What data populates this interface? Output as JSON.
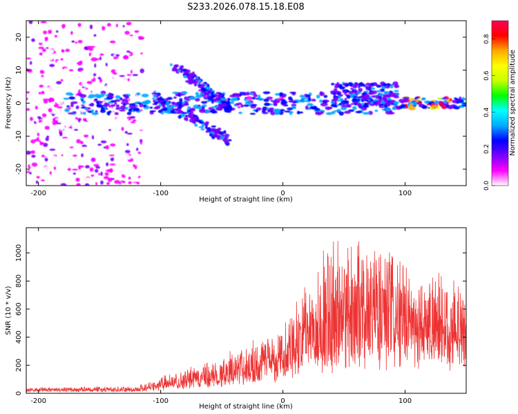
{
  "title": "S233.2026.078.15.18.E08",
  "chart_data": [
    {
      "type": "heatmap",
      "xlabel": "Height of straight line (km)",
      "ylabel": "Frequency (Hz)",
      "xlim": [
        -210,
        150
      ],
      "ylim": [
        -25,
        25
      ],
      "xticks": [
        -200,
        -100,
        0,
        100
      ],
      "yticks": [
        20,
        10,
        0,
        -10,
        -20
      ],
      "colorbar": {
        "label": "Normalized spectral amplitude",
        "range": [
          0.0,
          0.9
        ],
        "ticks": [
          0.0,
          0.2,
          0.4,
          0.6,
          0.8
        ],
        "colors": [
          "#ffffff",
          "#ff00ff",
          "#7a00ff",
          "#0000ff",
          "#00aaff",
          "#00ffff",
          "#00ff00",
          "#c8ff00",
          "#ffff00",
          "#ffaa00",
          "#ff0000",
          "#ff0055"
        ]
      },
      "features": [
        {
          "name": "noise-region",
          "x": [
            -210,
            -115
          ],
          "freq": [
            -25,
            25
          ],
          "level": 0.1
        },
        {
          "name": "main-band",
          "x": [
            -180,
            150
          ],
          "freq": [
            -3,
            3
          ],
          "peak_level": 0.9,
          "peak_x": [
            100,
            140
          ]
        },
        {
          "name": "band-upper-slant",
          "x": [
            -90,
            -45
          ],
          "freq": [
            12,
            -1
          ],
          "level": 0.35
        },
        {
          "name": "band-lower-slant",
          "x": [
            -105,
            -45
          ],
          "freq": [
            2,
            -11
          ],
          "level": 0.3
        },
        {
          "name": "band-high-lump",
          "x": [
            40,
            95
          ],
          "freq": [
            -1,
            6
          ],
          "level": 0.35
        }
      ]
    },
    {
      "type": "line",
      "xlabel": "Height of straight line (km)",
      "ylabel": "SNR (10 * v/v)",
      "xlim": [
        -210,
        150
      ],
      "ylim": [
        0,
        1180
      ],
      "xticks": [
        -200,
        -100,
        0,
        100
      ],
      "yticks": [
        0,
        200,
        400,
        600,
        800,
        1000
      ],
      "color": "#ee3333",
      "envelope": {
        "x": [
          -210,
          -120,
          -100,
          -60,
          -30,
          0,
          20,
          40,
          60,
          80,
          100,
          120,
          150
        ],
        "base": [
          20,
          20,
          40,
          80,
          130,
          200,
          250,
          300,
          320,
          330,
          340,
          350,
          380
        ],
        "peak": [
          40,
          50,
          120,
          220,
          340,
          520,
          820,
          1120,
          1080,
          1140,
          900,
          850,
          700
        ]
      }
    }
  ]
}
